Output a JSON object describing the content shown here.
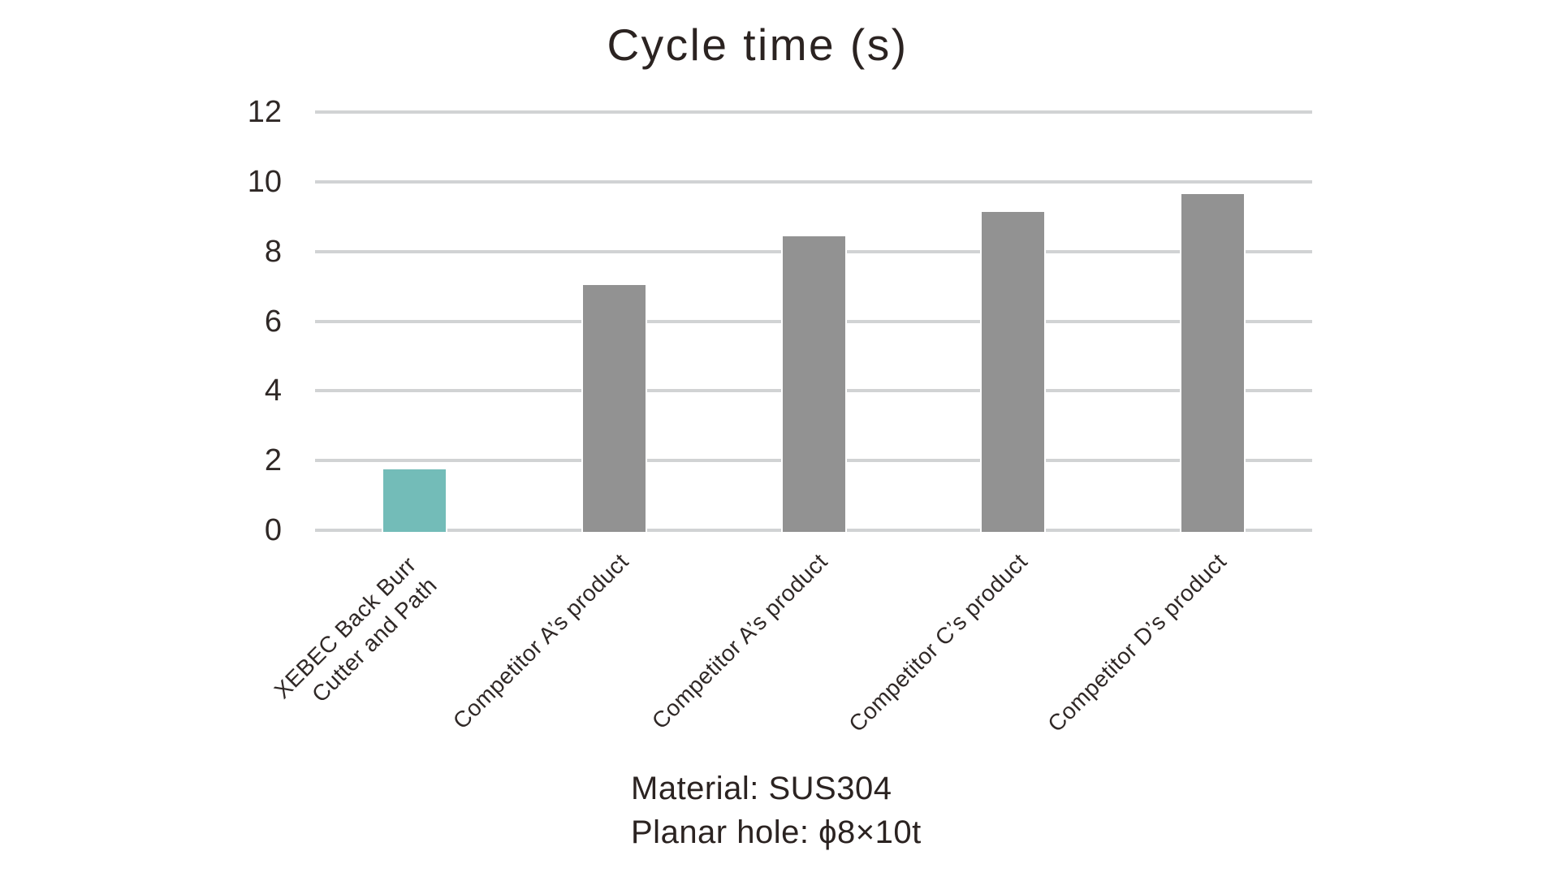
{
  "page": {
    "background": "#ffffff"
  },
  "chart_data": {
    "type": "bar",
    "title": "Cycle time (s)",
    "categories": [
      "XEBEC Back Burr\nCutter and Path",
      "Competitor A’s product",
      "Competitor A’s product",
      "Competitor C’s product",
      "Competitor D’s product"
    ],
    "values": [
      1.7,
      7.0,
      8.4,
      9.1,
      9.6
    ],
    "bar_colors": [
      "#73bcb8",
      "#929292",
      "#929292",
      "#929292",
      "#929292"
    ],
    "highlight_bar_color": "#73bcb8",
    "default_bar_color": "#929292",
    "ylim": [
      0,
      12
    ],
    "yticks": [
      0,
      2,
      4,
      6,
      8,
      10,
      12
    ],
    "grid": true,
    "legend_position": "none",
    "xlabel": "",
    "ylabel": "",
    "gridline_color": "#d1d3d4",
    "text_color": "#2f2826",
    "annotations": [
      "Material: SUS304",
      "Planar hole: ϕ8×10t"
    ]
  }
}
